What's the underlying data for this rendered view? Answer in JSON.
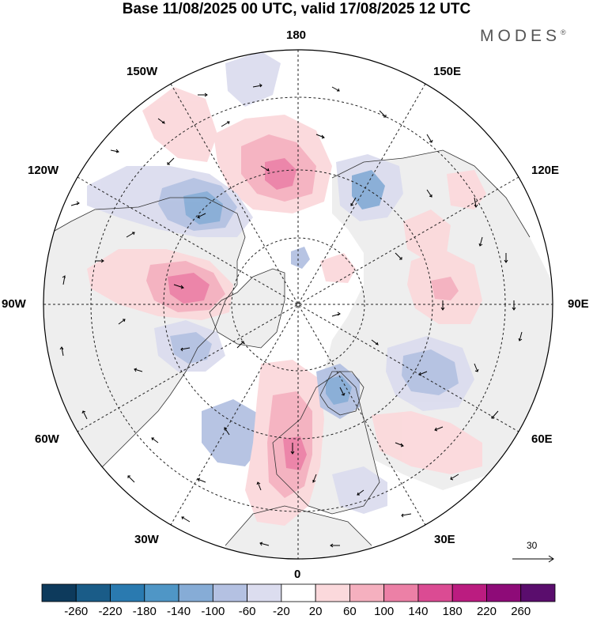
{
  "title": "Base 11/08/2025 00 UTC, valid 17/08/2025 12 UTC",
  "brand": "MODES",
  "brand_mark": "®",
  "map": {
    "projection": "north-polar-stereographic",
    "labels": {
      "top": "180",
      "bottom": "0",
      "left": "90W",
      "right": "90E",
      "upper_left_1": "150W",
      "upper_left_2": "120W",
      "upper_right_1": "150E",
      "upper_right_2": "120E",
      "lower_left_1": "60W",
      "lower_left_2": "30W",
      "lower_right_1": "60E",
      "lower_right_2": "30E"
    },
    "anomalies": [
      {
        "region": "north-pacific",
        "sign": "positive",
        "level": 100
      },
      {
        "region": "bering-chukchi",
        "sign": "positive",
        "level": 140
      },
      {
        "region": "alaska-gulf",
        "sign": "negative",
        "level": -140
      },
      {
        "region": "east-siberia",
        "sign": "negative",
        "level": -100
      },
      {
        "region": "hudson-bay",
        "sign": "positive",
        "level": 140
      },
      {
        "region": "labrador",
        "sign": "negative",
        "level": -100
      },
      {
        "region": "central-atlantic",
        "sign": "negative",
        "level": -60
      },
      {
        "region": "western-europe",
        "sign": "positive",
        "level": 140
      },
      {
        "region": "scandinavia",
        "sign": "negative",
        "level": -140
      },
      {
        "region": "western-siberia",
        "sign": "negative",
        "level": -100
      },
      {
        "region": "central-siberia",
        "sign": "positive",
        "level": 100
      },
      {
        "region": "kazakhstan",
        "sign": "positive",
        "level": 60
      }
    ]
  },
  "colorbar": {
    "ticks": [
      "-260",
      "-220",
      "-180",
      "-140",
      "-100",
      "-60",
      "-20",
      "20",
      "60",
      "100",
      "140",
      "180",
      "220",
      "260"
    ],
    "colors": [
      "#0d3a5c",
      "#1a5c88",
      "#2a7ab0",
      "#4f96c6",
      "#86acd6",
      "#b4c1e2",
      "#dcddef",
      "#ffffff",
      "#fbd9dc",
      "#f5b0bf",
      "#ec80a6",
      "#db4b93",
      "#bb1c80",
      "#8e0b78",
      "#5a0d6d"
    ]
  },
  "vector_scale": {
    "value": "30"
  }
}
